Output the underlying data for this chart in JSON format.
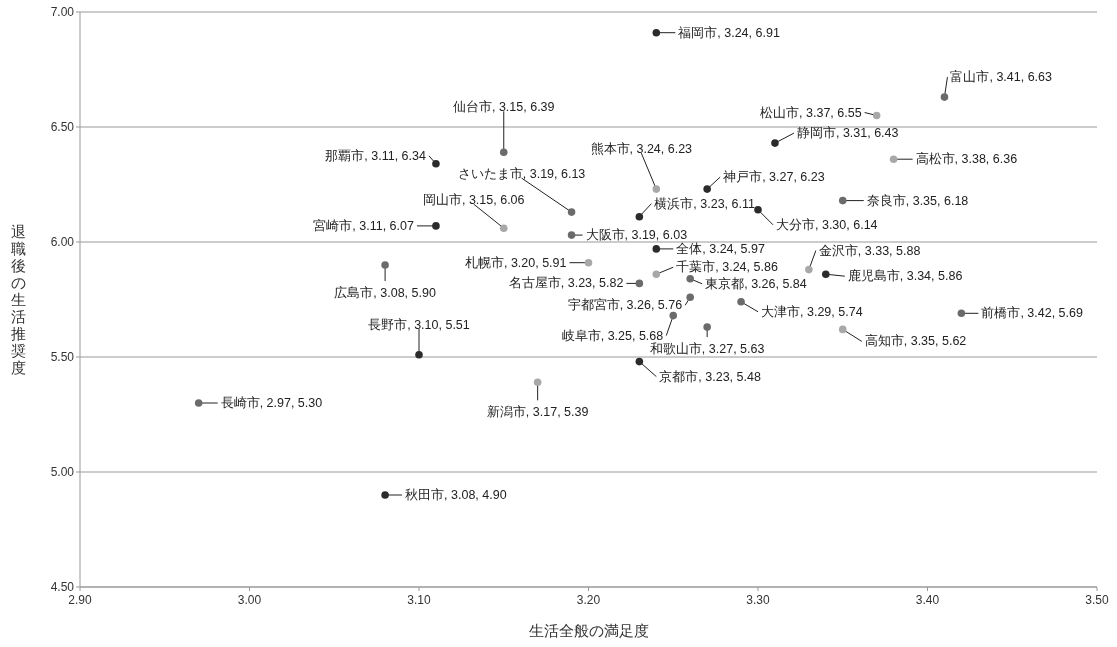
{
  "chart_data": {
    "type": "scatter",
    "xlabel": "生活全般の満足度",
    "ylabel": "退職後の生活推奨度",
    "xlim": [
      2.9,
      3.5
    ],
    "xticks": [
      {
        "value": 2.9,
        "label": "2.90"
      },
      {
        "value": 3.0,
        "label": "3.00"
      },
      {
        "value": 3.1,
        "label": "3.10"
      },
      {
        "value": 3.2,
        "label": "3.20"
      },
      {
        "value": 3.3,
        "label": "3.30"
      },
      {
        "value": 3.4,
        "label": "3.40"
      },
      {
        "value": 3.5,
        "label": "3.50"
      }
    ],
    "ylim": [
      4.5,
      7.0
    ],
    "yticks": [
      {
        "value": 4.5,
        "label": "4.50"
      },
      {
        "value": 5.0,
        "label": "5.00"
      },
      {
        "value": 5.5,
        "label": "5.50"
      },
      {
        "value": 6.0,
        "label": "6.00"
      },
      {
        "value": 6.5,
        "label": "6.50"
      },
      {
        "value": 7.0,
        "label": "7.00"
      }
    ],
    "grid": "y",
    "marker": "circle",
    "x": [
      3.24,
      3.37,
      3.41,
      3.15,
      3.31,
      3.11,
      3.38,
      3.24,
      3.19,
      3.27,
      3.35,
      3.15,
      3.23,
      3.3,
      3.11,
      3.19,
      3.24,
      3.33,
      3.2,
      3.24,
      3.34,
      3.08,
      3.23,
      3.26,
      3.26,
      3.29,
      3.42,
      3.25,
      3.27,
      3.35,
      3.1,
      3.23,
      2.97,
      3.17,
      3.08
    ],
    "values": [
      6.91,
      6.55,
      6.63,
      6.39,
      6.43,
      6.34,
      6.36,
      6.23,
      6.13,
      6.23,
      6.18,
      6.06,
      6.11,
      6.14,
      6.07,
      6.03,
      5.97,
      5.88,
      5.91,
      5.86,
      5.86,
      5.9,
      5.82,
      5.84,
      5.76,
      5.74,
      5.69,
      5.68,
      5.63,
      5.62,
      5.51,
      5.48,
      5.3,
      5.39,
      4.9
    ],
    "colors": [
      "#2b2b2b",
      "#a8a8a8",
      "#6b6b6b",
      "#6b6b6b",
      "#2b2b2b",
      "#2b2b2b",
      "#a8a8a8",
      "#a8a8a8",
      "#6b6b6b",
      "#2b2b2b",
      "#6b6b6b",
      "#a8a8a8",
      "#2b2b2b",
      "#2b2b2b",
      "#2b2b2b",
      "#6b6b6b",
      "#2b2b2b",
      "#a8a8a8",
      "#a8a8a8",
      "#a8a8a8",
      "#2b2b2b",
      "#6b6b6b",
      "#6b6b6b",
      "#6b6b6b",
      "#6b6b6b",
      "#6b6b6b",
      "#6b6b6b",
      "#6b6b6b",
      "#6b6b6b",
      "#a8a8a8",
      "#2b2b2b",
      "#2b2b2b",
      "#6b6b6b",
      "#a8a8a8",
      "#2b2b2b"
    ],
    "value_labels": [
      "福岡市, 3.24, 6.91",
      "松山市, 3.37, 6.55",
      "富山市, 3.41, 6.63",
      "仙台市, 3.15, 6.39",
      "静岡市, 3.31, 6.43",
      "那覇市, 3.11, 6.34",
      "高松市, 3.38, 6.36",
      "熊本市, 3.24, 6.23",
      "さいたま市, 3.19, 6.13",
      "神戸市, 3.27, 6.23",
      "奈良市, 3.35, 6.18",
      "岡山市, 3.15, 6.06",
      "横浜市, 3.23, 6.11",
      "大分市, 3.30, 6.14",
      "宮崎市, 3.11, 6.07",
      "大阪市, 3.19, 6.03",
      "全体, 3.24, 5.97",
      "金沢市, 3.33, 5.88",
      "札幌市, 3.20, 5.91",
      "千葉市, 3.24, 5.86",
      "鹿児島市, 3.34, 5.86",
      "広島市, 3.08, 5.90",
      "名古屋市, 3.23, 5.82",
      "東京都, 3.26, 5.84",
      "宇都宮市, 3.26, 5.76",
      "大津市, 3.29, 5.74",
      "前橋市, 3.42, 5.69",
      "岐阜市, 3.25, 5.68",
      "和歌山市, 3.27, 5.63",
      "高知市, 3.35, 5.62",
      "長野市, 3.10, 5.51",
      "京都市, 3.23, 5.48",
      "長崎市, 2.97, 5.30",
      "新潟市, 3.17, 5.39",
      "秋田市, 3.08, 4.90"
    ]
  }
}
